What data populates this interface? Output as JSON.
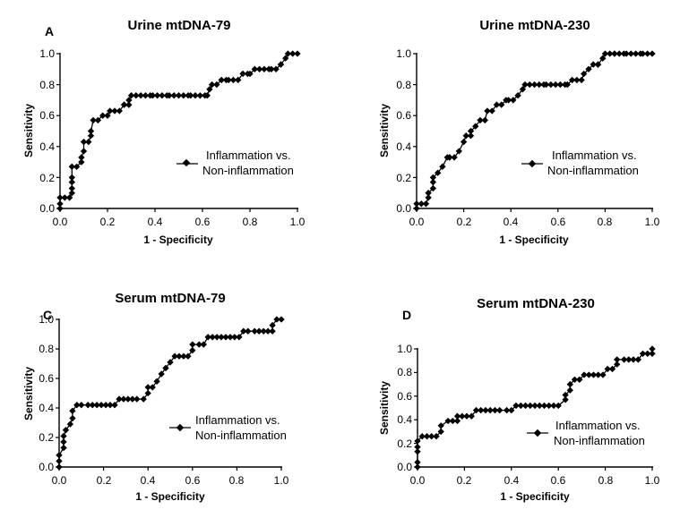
{
  "chart_data": [
    {
      "type": "line",
      "panel_label": "A",
      "title": "Urine mtDNA-79",
      "xlabel": "1 - Specificity",
      "ylabel": "Sensitivity",
      "xlim": [
        0,
        1
      ],
      "ylim": [
        0,
        1
      ],
      "x_ticks": [
        "0.0",
        "0.2",
        "0.4",
        "0.6",
        "0.8",
        "1.0"
      ],
      "y_ticks": [
        "0.0",
        "0.2",
        "0.4",
        "0.6",
        "0.8",
        "1.0"
      ],
      "legend": [
        "Inflammation vs.",
        "Non-inflammation"
      ],
      "legend_position": "center-right",
      "series": [
        {
          "name": "Inflammation vs. Non-inflammation",
          "x": [
            0.0,
            0.0,
            0.0,
            0.02,
            0.04,
            0.05,
            0.05,
            0.05,
            0.05,
            0.05,
            0.07,
            0.09,
            0.09,
            0.1,
            0.1,
            0.12,
            0.13,
            0.13,
            0.14,
            0.16,
            0.18,
            0.2,
            0.21,
            0.23,
            0.25,
            0.27,
            0.27,
            0.29,
            0.29,
            0.3,
            0.32,
            0.34,
            0.36,
            0.38,
            0.39,
            0.41,
            0.43,
            0.45,
            0.46,
            0.48,
            0.5,
            0.52,
            0.54,
            0.55,
            0.57,
            0.59,
            0.61,
            0.62,
            0.63,
            0.64,
            0.66,
            0.68,
            0.7,
            0.71,
            0.73,
            0.75,
            0.77,
            0.79,
            0.8,
            0.82,
            0.84,
            0.86,
            0.88,
            0.89,
            0.91,
            0.93,
            0.93,
            0.95,
            0.96,
            0.98,
            1.0
          ],
          "y": [
            0.0,
            0.03,
            0.07,
            0.07,
            0.07,
            0.1,
            0.13,
            0.17,
            0.2,
            0.27,
            0.27,
            0.3,
            0.33,
            0.37,
            0.43,
            0.43,
            0.47,
            0.5,
            0.57,
            0.57,
            0.6,
            0.6,
            0.63,
            0.63,
            0.63,
            0.67,
            0.67,
            0.67,
            0.7,
            0.73,
            0.73,
            0.73,
            0.73,
            0.73,
            0.73,
            0.73,
            0.73,
            0.73,
            0.73,
            0.73,
            0.73,
            0.73,
            0.73,
            0.73,
            0.73,
            0.73,
            0.73,
            0.73,
            0.77,
            0.8,
            0.8,
            0.83,
            0.83,
            0.83,
            0.83,
            0.83,
            0.87,
            0.87,
            0.87,
            0.9,
            0.9,
            0.9,
            0.9,
            0.9,
            0.9,
            0.93,
            0.93,
            0.97,
            1.0,
            1.0,
            1.0
          ]
        }
      ]
    },
    {
      "type": "line",
      "panel_label": "",
      "title": "Urine mtDNA-230",
      "xlabel": "1 - Specificity",
      "ylabel": "Sensitivity",
      "xlim": [
        0,
        1
      ],
      "ylim": [
        0,
        1
      ],
      "x_ticks": [
        "0.0",
        "0.2",
        "0.4",
        "0.6",
        "0.8",
        "1.0"
      ],
      "y_ticks": [
        "0.0",
        "0.2",
        "0.4",
        "0.6",
        "0.8",
        "1.0"
      ],
      "legend": [
        "Inflammation vs.",
        "Non-inflammation"
      ],
      "legend_position": "center-right",
      "series": [
        {
          "name": "Inflammation vs. Non-inflammation",
          "x": [
            0.0,
            0.0,
            0.02,
            0.04,
            0.05,
            0.05,
            0.07,
            0.07,
            0.07,
            0.09,
            0.11,
            0.13,
            0.14,
            0.14,
            0.16,
            0.18,
            0.2,
            0.21,
            0.23,
            0.23,
            0.25,
            0.27,
            0.29,
            0.3,
            0.32,
            0.34,
            0.36,
            0.38,
            0.39,
            0.41,
            0.43,
            0.45,
            0.46,
            0.48,
            0.5,
            0.52,
            0.54,
            0.55,
            0.57,
            0.59,
            0.61,
            0.63,
            0.64,
            0.66,
            0.68,
            0.7,
            0.71,
            0.73,
            0.75,
            0.77,
            0.77,
            0.77,
            0.79,
            0.8,
            0.82,
            0.84,
            0.84,
            0.86,
            0.88,
            0.89,
            0.91,
            0.93,
            0.95,
            0.96,
            0.98,
            1.0
          ],
          "y": [
            0.0,
            0.03,
            0.03,
            0.03,
            0.07,
            0.1,
            0.13,
            0.17,
            0.2,
            0.23,
            0.27,
            0.33,
            0.33,
            0.33,
            0.33,
            0.37,
            0.43,
            0.47,
            0.47,
            0.5,
            0.53,
            0.57,
            0.57,
            0.63,
            0.63,
            0.67,
            0.67,
            0.7,
            0.7,
            0.7,
            0.73,
            0.77,
            0.8,
            0.8,
            0.8,
            0.8,
            0.8,
            0.8,
            0.8,
            0.8,
            0.8,
            0.8,
            0.8,
            0.83,
            0.83,
            0.83,
            0.87,
            0.9,
            0.93,
            0.93,
            0.93,
            0.93,
            0.97,
            1.0,
            1.0,
            1.0,
            1.0,
            1.0,
            1.0,
            1.0,
            1.0,
            1.0,
            1.0,
            1.0,
            1.0,
            1.0
          ]
        }
      ]
    },
    {
      "type": "line",
      "panel_label": "C",
      "title": "Serum mtDNA-79",
      "xlabel": "1 - Specificity",
      "ylabel": "Sensitivity",
      "xlim": [
        0,
        1
      ],
      "ylim": [
        0,
        1
      ],
      "x_ticks": [
        "0.0",
        "0.2",
        "0.4",
        "0.6",
        "0.8",
        "1.0"
      ],
      "y_ticks": [
        "0.0",
        "0.2",
        "0.4",
        "0.6",
        "0.8",
        "1.0"
      ],
      "legend": [
        "Inflammation vs.",
        "Non-inflammation"
      ],
      "legend_position": "center-right",
      "series": [
        {
          "name": "Inflammation vs. Non-inflammation",
          "x": [
            0.0,
            0.0,
            0.0,
            0.02,
            0.02,
            0.02,
            0.03,
            0.05,
            0.06,
            0.06,
            0.08,
            0.1,
            0.13,
            0.15,
            0.17,
            0.19,
            0.21,
            0.23,
            0.25,
            0.27,
            0.29,
            0.31,
            0.33,
            0.35,
            0.38,
            0.4,
            0.4,
            0.42,
            0.44,
            0.46,
            0.48,
            0.5,
            0.52,
            0.54,
            0.56,
            0.58,
            0.6,
            0.6,
            0.63,
            0.65,
            0.67,
            0.69,
            0.71,
            0.73,
            0.75,
            0.77,
            0.79,
            0.81,
            0.83,
            0.85,
            0.88,
            0.9,
            0.92,
            0.94,
            0.96,
            0.96,
            0.98,
            1.0
          ],
          "y": [
            0.0,
            0.04,
            0.08,
            0.13,
            0.17,
            0.21,
            0.25,
            0.29,
            0.33,
            0.38,
            0.42,
            0.42,
            0.42,
            0.42,
            0.42,
            0.42,
            0.42,
            0.42,
            0.42,
            0.46,
            0.46,
            0.46,
            0.46,
            0.46,
            0.46,
            0.5,
            0.54,
            0.54,
            0.58,
            0.63,
            0.67,
            0.71,
            0.75,
            0.75,
            0.75,
            0.75,
            0.79,
            0.83,
            0.83,
            0.83,
            0.88,
            0.88,
            0.88,
            0.88,
            0.88,
            0.88,
            0.88,
            0.88,
            0.92,
            0.92,
            0.92,
            0.92,
            0.92,
            0.92,
            0.92,
            0.96,
            1.0,
            1.0
          ]
        }
      ]
    },
    {
      "type": "line",
      "panel_label": "D",
      "title": "Serum mtDNA-230",
      "xlabel": "1 - Specificity",
      "ylabel": "Sensitivity",
      "xlim": [
        0,
        1
      ],
      "ylim": [
        0,
        1
      ],
      "x_ticks": [
        "0.0",
        "0.2",
        "0.4",
        "0.6",
        "0.8",
        "1.0"
      ],
      "y_ticks": [
        "0.0",
        "0.2",
        "0.4",
        "0.6",
        "0.8",
        "1.0"
      ],
      "legend": [
        "Inflammation vs.",
        "Non-inflammation"
      ],
      "legend_position": "center-right",
      "series": [
        {
          "name": "Inflammation vs. Non-inflammation",
          "x": [
            0.0,
            0.0,
            0.0,
            0.0,
            0.0,
            0.02,
            0.04,
            0.06,
            0.08,
            0.1,
            0.1,
            0.13,
            0.15,
            0.17,
            0.17,
            0.19,
            0.21,
            0.23,
            0.25,
            0.27,
            0.29,
            0.31,
            0.33,
            0.35,
            0.38,
            0.4,
            0.42,
            0.44,
            0.46,
            0.48,
            0.5,
            0.52,
            0.54,
            0.56,
            0.58,
            0.6,
            0.63,
            0.63,
            0.65,
            0.65,
            0.67,
            0.69,
            0.71,
            0.73,
            0.75,
            0.77,
            0.79,
            0.81,
            0.83,
            0.85,
            0.85,
            0.88,
            0.9,
            0.92,
            0.94,
            0.96,
            0.98,
            1.0,
            1.0
          ],
          "y": [
            0.0,
            0.04,
            0.13,
            0.17,
            0.22,
            0.26,
            0.26,
            0.26,
            0.26,
            0.3,
            0.35,
            0.39,
            0.39,
            0.39,
            0.43,
            0.43,
            0.43,
            0.43,
            0.48,
            0.48,
            0.48,
            0.48,
            0.48,
            0.48,
            0.48,
            0.48,
            0.52,
            0.52,
            0.52,
            0.52,
            0.52,
            0.52,
            0.52,
            0.52,
            0.52,
            0.52,
            0.57,
            0.61,
            0.65,
            0.7,
            0.74,
            0.74,
            0.78,
            0.78,
            0.78,
            0.78,
            0.78,
            0.83,
            0.83,
            0.87,
            0.91,
            0.91,
            0.91,
            0.91,
            0.91,
            0.96,
            0.96,
            0.96,
            1.0
          ]
        }
      ]
    }
  ]
}
